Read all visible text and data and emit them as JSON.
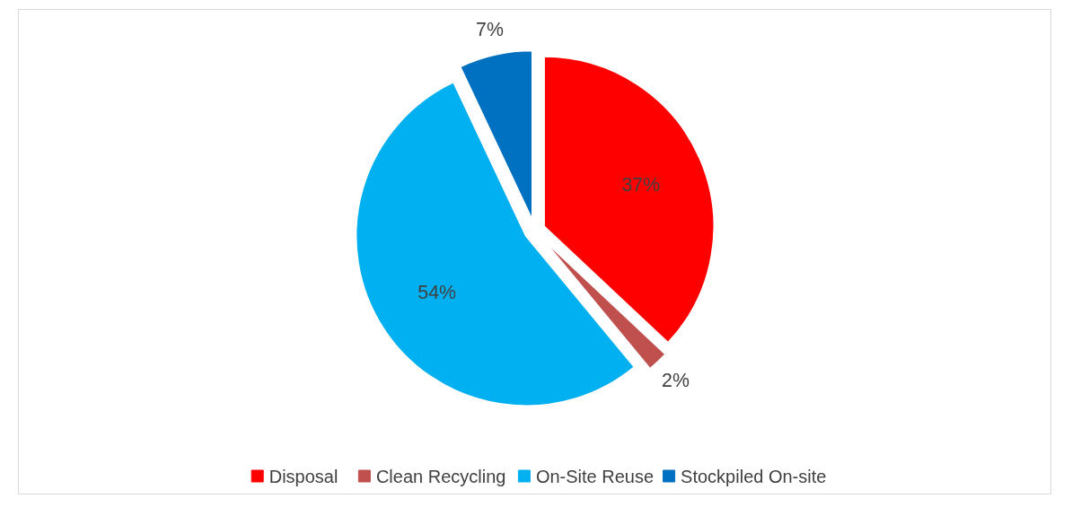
{
  "chart_data": {
    "type": "pie",
    "categories": [
      "Disposal",
      "Clean Recycling",
      "On-Site Reuse",
      "Stockpiled On-site"
    ],
    "values": [
      37,
      2,
      54,
      7
    ],
    "colors": [
      "#ff0000",
      "#c0504d",
      "#00b0f0",
      "#0070c0"
    ],
    "value_labels": [
      "37%",
      "2%",
      "54%",
      "7%"
    ],
    "data_labels": true,
    "legend": "bottom"
  }
}
